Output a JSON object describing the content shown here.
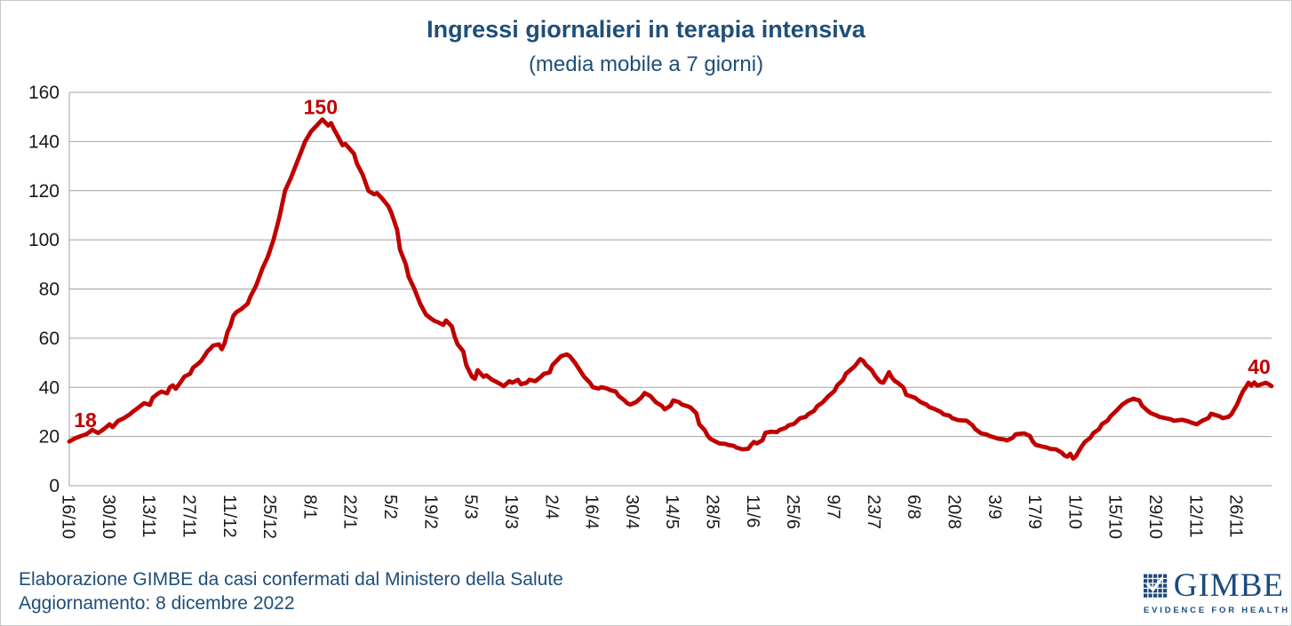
{
  "header": {
    "title": "Ingressi giornalieri in terapia intensiva",
    "subtitle": "(media mobile a 7 giorni)"
  },
  "footer": {
    "line1": "Elaborazione GIMBE da casi confermati dal Ministero della Salute",
    "line2": "Aggiornamento: 8 dicembre 2022"
  },
  "logo": {
    "name": "GIMBE",
    "tagline": "EVIDENCE FOR HEALTH"
  },
  "colors": {
    "line": "#C00000",
    "heading_blue": "#1F4E79",
    "logo_blue": "#1B4A7E",
    "grid": "#A3A3A3",
    "tick_text": "#1a1a1a"
  },
  "chart_data": {
    "type": "line",
    "title": "Ingressi giornalieri in terapia intensiva (media mobile a 7 giorni)",
    "xlabel": "",
    "ylabel": "",
    "ylim": [
      0,
      160
    ],
    "y_ticks": [
      0,
      20,
      40,
      60,
      80,
      100,
      120,
      140,
      160
    ],
    "grid": true,
    "legend": false,
    "x_tick_interval_days": 14,
    "x_tick_labels": [
      "16/10",
      "30/10",
      "13/11",
      "27/11",
      "11/12",
      "25/12",
      "8/1",
      "22/1",
      "5/2",
      "19/2",
      "5/3",
      "19/3",
      "2/4",
      "16/4",
      "30/4",
      "14/5",
      "28/5",
      "11/6",
      "25/6",
      "9/7",
      "23/7",
      "6/8",
      "20/8",
      "3/9",
      "17/9",
      "1/10",
      "15/10",
      "29/10",
      "12/11",
      "26/11"
    ],
    "x_range_days": [
      0,
      418
    ],
    "annotations": [
      {
        "label": "18",
        "day": 0,
        "value": 18
      },
      {
        "label": "150",
        "day": 88,
        "value": 149
      },
      {
        "label": "40",
        "day": 418,
        "value": 40.5
      }
    ],
    "series": [
      {
        "name": "Ingressi giornalieri in terapia intensiva (media mobile a 7 giorni)",
        "points": [
          [
            0,
            18
          ],
          [
            2,
            19.3
          ],
          [
            4,
            20.2
          ],
          [
            6,
            21
          ],
          [
            8,
            22.7
          ],
          [
            10,
            21.4
          ],
          [
            12,
            23
          ],
          [
            14,
            25
          ],
          [
            15,
            23.8
          ],
          [
            17,
            26.4
          ],
          [
            19,
            27.5
          ],
          [
            21,
            29
          ],
          [
            22,
            30
          ],
          [
            24,
            31.8
          ],
          [
            26,
            33.6
          ],
          [
            28,
            32.9
          ],
          [
            29,
            35.8
          ],
          [
            31,
            37.6
          ],
          [
            32,
            38.3
          ],
          [
            34,
            37.6
          ],
          [
            35,
            40.1
          ],
          [
            36,
            40.8
          ],
          [
            37,
            39.4
          ],
          [
            39,
            42.6
          ],
          [
            40,
            44.4
          ],
          [
            42,
            45.5
          ],
          [
            43,
            48
          ],
          [
            45,
            49.8
          ],
          [
            46,
            51
          ],
          [
            48,
            54.6
          ],
          [
            49,
            55.7
          ],
          [
            50,
            57
          ],
          [
            52,
            57.5
          ],
          [
            53,
            55.5
          ],
          [
            54,
            58
          ],
          [
            55,
            62.5
          ],
          [
            56,
            65
          ],
          [
            57,
            69
          ],
          [
            58,
            70.5
          ],
          [
            60,
            72
          ],
          [
            62,
            74
          ],
          [
            63,
            77
          ],
          [
            65,
            81.5
          ],
          [
            67,
            88
          ],
          [
            69,
            93
          ],
          [
            71,
            100
          ],
          [
            73,
            109
          ],
          [
            75,
            120
          ],
          [
            77,
            125
          ],
          [
            79,
            131
          ],
          [
            82,
            140
          ],
          [
            84,
            144
          ],
          [
            86,
            146.5
          ],
          [
            88,
            149
          ],
          [
            90,
            146.5
          ],
          [
            91,
            147.5
          ],
          [
            92,
            145
          ],
          [
            93,
            143
          ],
          [
            95,
            138.5
          ],
          [
            96,
            139
          ],
          [
            99,
            135
          ],
          [
            100,
            131
          ],
          [
            102,
            126.5
          ],
          [
            104,
            120
          ],
          [
            106,
            118.5
          ],
          [
            107,
            119
          ],
          [
            109,
            116.5
          ],
          [
            111,
            113.5
          ],
          [
            112,
            111
          ],
          [
            114,
            104
          ],
          [
            115,
            96
          ],
          [
            117,
            90
          ],
          [
            118,
            85
          ],
          [
            120,
            80
          ],
          [
            122,
            74
          ],
          [
            124,
            69.6
          ],
          [
            126,
            67.8
          ],
          [
            127,
            67
          ],
          [
            128,
            66.6
          ],
          [
            130,
            65.4
          ],
          [
            131,
            67.2
          ],
          [
            133,
            64.8
          ],
          [
            134,
            60.6
          ],
          [
            135,
            57.5
          ],
          [
            137,
            54.6
          ],
          [
            138,
            49.1
          ],
          [
            140,
            44.3
          ],
          [
            141,
            43.5
          ],
          [
            142,
            47
          ],
          [
            144,
            44.3
          ],
          [
            145,
            44.9
          ],
          [
            147,
            43.1
          ],
          [
            148,
            42.5
          ],
          [
            150,
            41.3
          ],
          [
            151,
            40.5
          ],
          [
            153,
            42.5
          ],
          [
            154,
            41.9
          ],
          [
            156,
            43.1
          ],
          [
            157,
            41.3
          ],
          [
            159,
            41.9
          ],
          [
            160,
            43.1
          ],
          [
            162,
            42.5
          ],
          [
            164,
            44.3
          ],
          [
            165,
            45.5
          ],
          [
            167,
            46.1
          ],
          [
            168,
            49.1
          ],
          [
            170,
            51.5
          ],
          [
            171,
            52.7
          ],
          [
            173,
            53.4
          ],
          [
            174,
            52.7
          ],
          [
            176,
            49.7
          ],
          [
            177,
            47.9
          ],
          [
            179,
            44.3
          ],
          [
            181,
            41.9
          ],
          [
            182,
            40.1
          ],
          [
            184,
            39.5
          ],
          [
            185,
            40.1
          ],
          [
            187,
            39.5
          ],
          [
            188,
            38.9
          ],
          [
            190,
            38.3
          ],
          [
            191,
            36.5
          ],
          [
            193,
            34.7
          ],
          [
            194,
            33.5
          ],
          [
            195,
            33
          ],
          [
            197,
            34
          ],
          [
            199,
            36
          ],
          [
            200,
            37.7
          ],
          [
            202,
            36.5
          ],
          [
            204,
            33.9
          ],
          [
            206,
            32.5
          ],
          [
            207,
            31.1
          ],
          [
            209,
            32.5
          ],
          [
            210,
            34.7
          ],
          [
            212,
            34
          ],
          [
            213,
            33
          ],
          [
            215,
            32.3
          ],
          [
            216,
            31.8
          ],
          [
            218,
            29.5
          ],
          [
            219,
            25
          ],
          [
            221,
            22.5
          ],
          [
            222,
            20.2
          ],
          [
            223,
            19
          ],
          [
            224,
            18.4
          ],
          [
            226,
            17.2
          ],
          [
            228,
            17
          ],
          [
            229,
            16.6
          ],
          [
            231,
            16.2
          ],
          [
            232,
            15.5
          ],
          [
            234,
            14.8
          ],
          [
            236,
            15
          ],
          [
            237,
            16.5
          ],
          [
            238,
            17.8
          ],
          [
            239,
            17.2
          ],
          [
            241,
            18.5
          ],
          [
            242,
            21.5
          ],
          [
            244,
            22
          ],
          [
            246,
            21.8
          ],
          [
            247,
            22.7
          ],
          [
            249,
            23.5
          ],
          [
            250,
            24.5
          ],
          [
            252,
            25.2
          ],
          [
            253,
            26.3
          ],
          [
            254,
            27.4
          ],
          [
            256,
            28
          ],
          [
            257,
            29.2
          ],
          [
            259,
            30.5
          ],
          [
            260,
            32.3
          ],
          [
            262,
            34
          ],
          [
            264,
            36.5
          ],
          [
            266,
            38.5
          ],
          [
            267,
            40.8
          ],
          [
            269,
            43
          ],
          [
            270,
            45.5
          ],
          [
            272,
            47.5
          ],
          [
            273,
            48.5
          ],
          [
            274,
            50
          ],
          [
            275,
            51.5
          ],
          [
            276,
            50.8
          ],
          [
            277,
            49.1
          ],
          [
            279,
            47
          ],
          [
            280,
            45
          ],
          [
            281,
            43.5
          ],
          [
            282,
            42.2
          ],
          [
            283,
            41.9
          ],
          [
            284,
            44
          ],
          [
            285,
            46.2
          ],
          [
            286,
            44
          ],
          [
            287,
            42.6
          ],
          [
            288,
            41.9
          ],
          [
            290,
            40
          ],
          [
            291,
            37
          ],
          [
            293,
            36.2
          ],
          [
            294,
            35.8
          ],
          [
            296,
            34
          ],
          [
            298,
            33
          ],
          [
            299,
            32
          ],
          [
            301,
            31.1
          ],
          [
            303,
            30
          ],
          [
            304,
            29
          ],
          [
            306,
            28.5
          ],
          [
            307,
            27.5
          ],
          [
            309,
            26.7
          ],
          [
            311,
            26.5
          ],
          [
            312,
            26.4
          ],
          [
            314,
            24.6
          ],
          [
            315,
            23
          ],
          [
            317,
            21.3
          ],
          [
            319,
            20.8
          ],
          [
            320,
            20.2
          ],
          [
            322,
            19.5
          ],
          [
            323,
            19.1
          ],
          [
            325,
            18.8
          ],
          [
            326,
            18.4
          ],
          [
            328,
            19.5
          ],
          [
            329,
            20.9
          ],
          [
            332,
            21.3
          ],
          [
            334,
            20.2
          ],
          [
            335,
            18
          ],
          [
            336,
            16.6
          ],
          [
            338,
            16
          ],
          [
            340,
            15.5
          ],
          [
            341,
            15
          ],
          [
            343,
            14.8
          ],
          [
            345,
            13.5
          ],
          [
            346,
            12.3
          ],
          [
            347,
            11.8
          ],
          [
            348,
            13
          ],
          [
            349,
            11
          ],
          [
            350,
            12
          ],
          [
            351,
            14.1
          ],
          [
            352,
            16
          ],
          [
            353,
            17.7
          ],
          [
            355,
            19.5
          ],
          [
            356,
            21.3
          ],
          [
            358,
            23
          ],
          [
            359,
            25
          ],
          [
            361,
            26.5
          ],
          [
            362,
            28.2
          ],
          [
            364,
            30.4
          ],
          [
            366,
            32.9
          ],
          [
            368,
            34.5
          ],
          [
            370,
            35.4
          ],
          [
            371,
            35
          ],
          [
            372,
            34.7
          ],
          [
            373,
            32.5
          ],
          [
            375,
            30.4
          ],
          [
            376,
            29.5
          ],
          [
            378,
            28.6
          ],
          [
            379,
            28
          ],
          [
            381,
            27.5
          ],
          [
            383,
            27
          ],
          [
            384,
            26.4
          ],
          [
            387,
            26.8
          ],
          [
            389,
            26.2
          ],
          [
            390,
            25.7
          ],
          [
            392,
            25
          ],
          [
            394,
            26.5
          ],
          [
            396,
            27.5
          ],
          [
            397,
            29.3
          ],
          [
            400,
            28.2
          ],
          [
            401,
            27.5
          ],
          [
            403,
            28
          ],
          [
            404,
            29
          ],
          [
            405,
            31
          ],
          [
            406,
            33
          ],
          [
            407,
            35.8
          ],
          [
            408,
            38.3
          ],
          [
            409,
            40
          ],
          [
            410,
            41.9
          ],
          [
            411,
            40.7
          ],
          [
            412,
            42
          ],
          [
            413,
            40.7
          ],
          [
            415,
            41.5
          ],
          [
            416,
            41.9
          ],
          [
            417,
            41.3
          ],
          [
            418,
            40.5
          ]
        ]
      }
    ]
  }
}
